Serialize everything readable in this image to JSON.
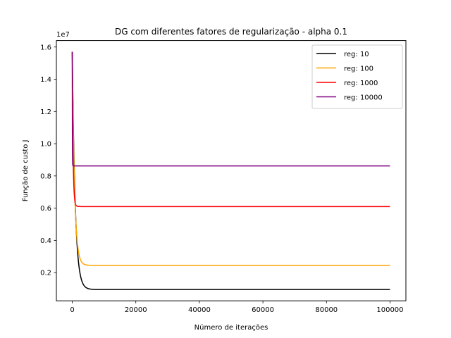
{
  "chart_data": {
    "type": "line",
    "title": "DG com diferentes fatores de regularização - alpha 0.1",
    "xlabel": "Número de iterações",
    "ylabel": "Função de custo J",
    "y_offset_label": "1e7",
    "xlim": [
      -5000,
      105000
    ],
    "ylim": [
      0.025,
      1.64
    ],
    "x_ticks": [
      0,
      20000,
      40000,
      60000,
      80000,
      100000
    ],
    "x_tick_labels": [
      "0",
      "20000",
      "40000",
      "60000",
      "80000",
      "100000"
    ],
    "y_ticks": [
      0.2,
      0.4,
      0.6,
      0.8,
      1.0,
      1.2,
      1.4,
      1.6
    ],
    "y_tick_labels": [
      "0.2",
      "0.4",
      "0.6",
      "0.8",
      "1.0",
      "1.2",
      "1.4",
      "1.6"
    ],
    "grid": false,
    "legend_position": "top-right",
    "series": [
      {
        "name": "reg: 10",
        "color": "#000000",
        "start": 1.57,
        "final": 0.095,
        "rate": 0.0011
      },
      {
        "name": "reg: 100",
        "color": "#ffa500",
        "start": 1.57,
        "final": 0.245,
        "rate": 0.0014
      },
      {
        "name": "reg: 1000",
        "color": "#ff0000",
        "start": 1.57,
        "final": 0.61,
        "rate": 0.004
      },
      {
        "name": "reg: 10000",
        "color": "#800080",
        "start": 1.57,
        "final": 0.862,
        "rate": 0.03
      }
    ],
    "x_end": 100000
  }
}
